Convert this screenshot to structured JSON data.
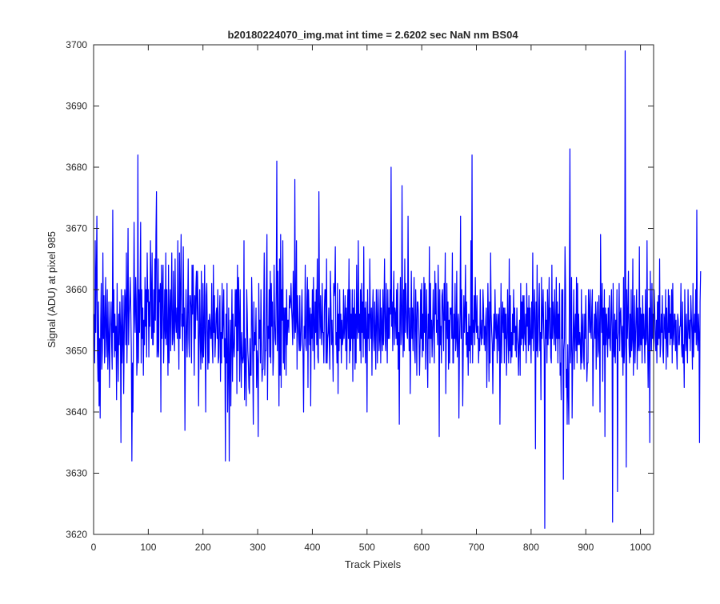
{
  "chart_data": {
    "type": "line",
    "title": "b20180224070_img.mat int time = 2.6202 sec  NaN nm BS04",
    "xlabel": "Track Pixels",
    "ylabel": "Signal (ADU) at pixel 985",
    "xlim": [
      0,
      1024
    ],
    "ylim": [
      3620,
      3700
    ],
    "xticks": [
      0,
      100,
      200,
      300,
      400,
      500,
      600,
      700,
      800,
      900,
      1000
    ],
    "yticks": [
      3620,
      3630,
      3640,
      3650,
      3660,
      3670,
      3680,
      3690,
      3700
    ],
    "grid": false,
    "legend": "none",
    "series_color": "#0000ff",
    "series": [
      {
        "x_start": 1,
        "x_step": 1,
        "y": [
          3656,
          3648,
          3668,
          3653,
          3663,
          3672,
          3650,
          3645,
          3658,
          3641,
          3652,
          3639,
          3655,
          3661,
          3647,
          3650,
          3666,
          3652,
          3659,
          3648,
          3655,
          3662,
          3649,
          3653,
          3660,
          3647,
          3651,
          3658,
          3644,
          3652,
          3655,
          3658,
          3651,
          3647,
          3673,
          3653,
          3660,
          3649,
          3656,
          3650,
          3654,
          3642,
          3661,
          3651,
          3645,
          3656,
          3651,
          3658,
          3654,
          3635,
          3660,
          3648,
          3652,
          3659,
          3643,
          3652,
          3660,
          3658,
          3651,
          3666,
          3648,
          3657,
          3670,
          3651,
          3656,
          3658,
          3662,
          3657,
          3650,
          3632,
          3648,
          3640,
          3655,
          3671,
          3656,
          3653,
          3662,
          3658,
          3646,
          3649,
          3682,
          3648,
          3660,
          3653,
          3660,
          3671,
          3648,
          3660,
          3652,
          3657,
          3646,
          3655,
          3651,
          3662,
          3654,
          3660,
          3649,
          3666,
          3658,
          3660,
          3649,
          3658,
          3654,
          3668,
          3660,
          3652,
          3666,
          3651,
          3651,
          3660,
          3653,
          3665,
          3655,
          3669,
          3676,
          3649,
          3650,
          3665,
          3649,
          3660,
          3658,
          3661,
          3640,
          3664,
          3652,
          3660,
          3664,
          3648,
          3653,
          3660,
          3652,
          3666,
          3651,
          3660,
          3653,
          3646,
          3664,
          3648,
          3656,
          3660,
          3650,
          3658,
          3666,
          3651,
          3652,
          3663,
          3653,
          3650,
          3665,
          3655,
          3653,
          3657,
          3652,
          3668,
          3654,
          3647,
          3666,
          3652,
          3660,
          3669,
          3654,
          3656,
          3650,
          3667,
          3654,
          3657,
          3637,
          3651,
          3660,
          3653,
          3649,
          3657,
          3665,
          3652,
          3649,
          3659,
          3659,
          3657,
          3648,
          3664,
          3656,
          3664,
          3657,
          3646,
          3659,
          3652,
          3660,
          3663,
          3655,
          3663,
          3657,
          3641,
          3652,
          3660,
          3652,
          3647,
          3663,
          3650,
          3648,
          3661,
          3649,
          3653,
          3664,
          3652,
          3640,
          3659,
          3661,
          3653,
          3647,
          3655,
          3648,
          3656,
          3655,
          3652,
          3652,
          3661,
          3651,
          3648,
          3664,
          3653,
          3659,
          3649,
          3652,
          3656,
          3657,
          3652,
          3660,
          3648,
          3649,
          3656,
          3659,
          3645,
          3653,
          3648,
          3661,
          3652,
          3655,
          3660,
          3649,
          3652,
          3632,
          3656,
          3648,
          3661,
          3640,
          3648,
          3657,
          3632,
          3649,
          3655,
          3641,
          3652,
          3660,
          3645,
          3656,
          3651,
          3649,
          3652,
          3660,
          3654,
          3660,
          3643,
          3664,
          3650,
          3662,
          3656,
          3645,
          3660,
          3650,
          3644,
          3653,
          3649,
          3648,
          3649,
          3668,
          3642,
          3652,
          3648,
          3641,
          3660,
          3656,
          3650,
          3648,
          3644,
          3643,
          3652,
          3646,
          3646,
          3662,
          3657,
          3648,
          3638,
          3658,
          3650,
          3653,
          3651,
          3657,
          3644,
          3650,
          3648,
          3636,
          3661,
          3652,
          3655,
          3648,
          3660,
          3651,
          3645,
          3647,
          3647,
          3656,
          3666,
          3646,
          3650,
          3650,
          3661,
          3669,
          3642,
          3654,
          3652,
          3660,
          3649,
          3663,
          3648,
          3661,
          3654,
          3658,
          3646,
          3649,
          3664,
          3655,
          3652,
          3651,
          3660,
          3681,
          3650,
          3663,
          3653,
          3641,
          3665,
          3646,
          3669,
          3644,
          3660,
          3655,
          3668,
          3648,
          3657,
          3647,
          3657,
          3657,
          3646,
          3660,
          3651,
          3655,
          3655,
          3653,
          3659,
          3657,
          3658,
          3661,
          3657,
          3655,
          3651,
          3663,
          3657,
          3652,
          3678,
          3653,
          3655,
          3668,
          3647,
          3659,
          3655,
          3652,
          3650,
          3659,
          3650,
          3651,
          3655,
          3660,
          3653,
          3649,
          3640,
          3654,
          3652,
          3664,
          3651,
          3650,
          3658,
          3662,
          3644,
          3660,
          3656,
          3651,
          3657,
          3641,
          3656,
          3652,
          3660,
          3650,
          3662,
          3655,
          3647,
          3658,
          3653,
          3660,
          3651,
          3665,
          3649,
          3648,
          3676,
          3658,
          3652,
          3659,
          3654,
          3651,
          3661,
          3653,
          3653,
          3648,
          3657,
          3660,
          3660,
          3648,
          3665,
          3648,
          3652,
          3653,
          3657,
          3651,
          3647,
          3663,
          3658,
          3651,
          3655,
          3651,
          3645,
          3661,
          3659,
          3660,
          3667,
          3651,
          3653,
          3648,
          3661,
          3643,
          3656,
          3650,
          3660,
          3652,
          3656,
          3648,
          3655,
          3651,
          3652,
          3660,
          3652,
          3654,
          3659,
          3650,
          3657,
          3647,
          3656,
          3660,
          3652,
          3665,
          3648,
          3660,
          3650,
          3656,
          3652,
          3660,
          3645,
          3657,
          3652,
          3660,
          3647,
          3656,
          3648,
          3664,
          3654,
          3652,
          3668,
          3653,
          3656,
          3650,
          3660,
          3648,
          3661,
          3653,
          3658,
          3649,
          3667,
          3652,
          3657,
          3648,
          3658,
          3653,
          3640,
          3660,
          3652,
          3656,
          3650,
          3665,
          3656,
          3652,
          3657,
          3646,
          3656,
          3660,
          3652,
          3650,
          3658,
          3653,
          3647,
          3660,
          3655,
          3648,
          3660,
          3656,
          3650,
          3652,
          3660,
          3648,
          3657,
          3654,
          3650,
          3660,
          3651,
          3657,
          3665,
          3652,
          3650,
          3661,
          3654,
          3648,
          3660,
          3652,
          3657,
          3652,
          3660,
          3656,
          3680,
          3654,
          3658,
          3650,
          3658,
          3663,
          3651,
          3657,
          3656,
          3652,
          3660,
          3651,
          3661,
          3647,
          3653,
          3638,
          3656,
          3662,
          3651,
          3653,
          3677,
          3656,
          3649,
          3660,
          3650,
          3665,
          3653,
          3661,
          3657,
          3653,
          3652,
          3672,
          3656,
          3650,
          3657,
          3643,
          3653,
          3663,
          3652,
          3657,
          3650,
          3656,
          3662,
          3650,
          3648,
          3660,
          3655,
          3646,
          3658,
          3658,
          3656,
          3652,
          3646,
          3651,
          3660,
          3652,
          3661,
          3649,
          3656,
          3650,
          3662,
          3653,
          3661,
          3647,
          3655,
          3660,
          3650,
          3644,
          3656,
          3652,
          3667,
          3648,
          3661,
          3652,
          3655,
          3649,
          3654,
          3660,
          3653,
          3648,
          3663,
          3656,
          3661,
          3653,
          3655,
          3651,
          3664,
          3658,
          3636,
          3660,
          3651,
          3654,
          3648,
          3659,
          3660,
          3655,
          3650,
          3661,
          3655,
          3666,
          3643,
          3653,
          3661,
          3652,
          3658,
          3647,
          3655,
          3648,
          3657,
          3656,
          3657,
          3652,
          3666,
          3648,
          3648,
          3656,
          3652,
          3661,
          3650,
          3652,
          3663,
          3649,
          3654,
          3656,
          3639,
          3651,
          3656,
          3672,
          3652,
          3660,
          3654,
          3641,
          3651,
          3659,
          3653,
          3656,
          3664,
          3651,
          3658,
          3649,
          3653,
          3646,
          3656,
          3650,
          3654,
          3648,
          3668,
          3651,
          3682,
          3648,
          3655,
          3653,
          3659,
          3651,
          3662,
          3655,
          3653,
          3659,
          3652,
          3654,
          3648,
          3652,
          3650,
          3660,
          3653,
          3651,
          3655,
          3652,
          3660,
          3657,
          3651,
          3654,
          3650,
          3655,
          3657,
          3644,
          3652,
          3661,
          3655,
          3645,
          3658,
          3648,
          3666,
          3656,
          3653,
          3651,
          3643,
          3652,
          3656,
          3650,
          3660,
          3654,
          3652,
          3656,
          3648,
          3654,
          3656,
          3650,
          3657,
          3638,
          3651,
          3661,
          3648,
          3655,
          3658,
          3653,
          3657,
          3648,
          3657,
          3652,
          3656,
          3646,
          3651,
          3660,
          3653,
          3648,
          3665,
          3650,
          3659,
          3648,
          3653,
          3649,
          3656,
          3651,
          3660,
          3653,
          3657,
          3650,
          3654,
          3649,
          3657,
          3652,
          3651,
          3646,
          3652,
          3655,
          3646,
          3661,
          3651,
          3658,
          3652,
          3659,
          3650,
          3659,
          3653,
          3651,
          3656,
          3648,
          3661,
          3654,
          3657,
          3650,
          3659,
          3651,
          3657,
          3652,
          3648,
          3658,
          3652,
          3666,
          3650,
          3654,
          3660,
          3655,
          3634,
          3658,
          3650,
          3664,
          3649,
          3652,
          3657,
          3661,
          3650,
          3653,
          3642,
          3662,
          3652,
          3656,
          3660,
          3654,
          3650,
          3621,
          3658,
          3652,
          3655,
          3648,
          3660,
          3651,
          3656,
          3662,
          3652,
          3657,
          3649,
          3648,
          3664,
          3652,
          3658,
          3655,
          3651,
          3660,
          3653,
          3650,
          3662,
          3652,
          3658,
          3648,
          3656,
          3652,
          3661,
          3646,
          3648,
          3642,
          3660,
          3652,
          3660,
          3629,
          3650,
          3652,
          3667,
          3660,
          3644,
          3647,
          3638,
          3651,
          3643,
          3638,
          3661,
          3683,
          3648,
          3651,
          3662,
          3639,
          3648,
          3653,
          3660,
          3647,
          3653,
          3656,
          3650,
          3662,
          3648,
          3661,
          3651,
          3656,
          3651,
          3653,
          3651,
          3647,
          3660,
          3648,
          3653,
          3656,
          3649,
          3647,
          3656,
          3652,
          3659,
          3653,
          3645,
          3648,
          3648,
          3660,
          3657,
          3653,
          3660,
          3653,
          3652,
          3657,
          3660,
          3641,
          3650,
          3653,
          3656,
          3652,
          3658,
          3647,
          3655,
          3658,
          3649,
          3650,
          3659,
          3653,
          3640,
          3669,
          3657,
          3653,
          3661,
          3645,
          3657,
          3651,
          3660,
          3636,
          3657,
          3651,
          3656,
          3653,
          3649,
          3657,
          3652,
          3659,
          3651,
          3650,
          3656,
          3660,
          3653,
          3622,
          3661,
          3651,
          3649,
          3656,
          3648,
          3655,
          3652,
          3660,
          3627,
          3652,
          3653,
          3661,
          3650,
          3656,
          3657,
          3653,
          3649,
          3654,
          3646,
          3662,
          3648,
          3651,
          3699,
          3657,
          3631,
          3660,
          3652,
          3656,
          3663,
          3651,
          3648,
          3656,
          3649,
          3660,
          3650,
          3652,
          3665,
          3646,
          3652,
          3659,
          3648,
          3652,
          3656,
          3660,
          3647,
          3657,
          3650,
          3651,
          3667,
          3650,
          3657,
          3651,
          3656,
          3648,
          3659,
          3652,
          3656,
          3652,
          3648,
          3660,
          3651,
          3652,
          3668,
          3652,
          3644,
          3652,
          3657,
          3635,
          3663,
          3654,
          3650,
          3661,
          3652,
          3656,
          3650,
          3660,
          3657,
          3652,
          3650,
          3655,
          3648,
          3658,
          3651,
          3659,
          3652,
          3665,
          3649,
          3651,
          3656,
          3653,
          3659,
          3650,
          3648,
          3656,
          3655,
          3652,
          3660,
          3647,
          3657,
          3652,
          3649,
          3660,
          3653,
          3659,
          3651,
          3656,
          3652,
          3660,
          3648,
          3661,
          3653,
          3651,
          3656,
          3656,
          3650,
          3655,
          3650,
          3647,
          3656,
          3655,
          3651,
          3651,
          3654,
          3654,
          3661,
          3651,
          3649,
          3658,
          3648,
          3651,
          3644,
          3660,
          3653,
          3650,
          3656,
          3651,
          3648,
          3660,
          3654,
          3652,
          3655,
          3650,
          3659,
          3656,
          3653,
          3647,
          3661,
          3649,
          3653,
          3656,
          3653,
          3660,
          3651,
          3673,
          3652,
          3650,
          3656,
          3653,
          3635,
          3658,
          3663
        ]
      }
    ]
  }
}
